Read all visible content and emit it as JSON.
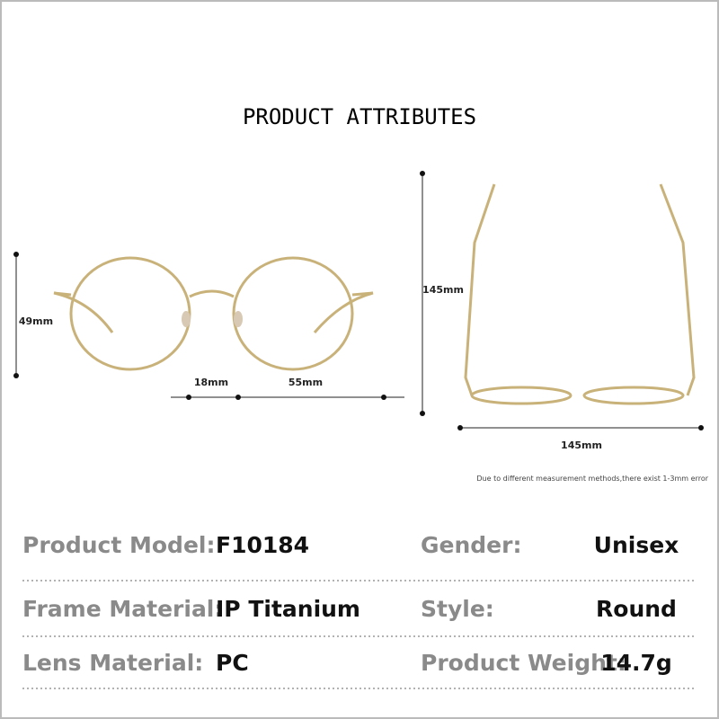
{
  "header": {
    "title": "PRODUCT ATTRIBUTES"
  },
  "dimensions": {
    "lens_height": "49mm",
    "bridge": "18mm",
    "lens_width": "55mm",
    "temple_length": "145mm",
    "frame_width": "145mm"
  },
  "note": "Due to different measurement methods,there exist 1-3mm error",
  "attributes": {
    "rows": [
      [
        "Product Model:",
        "F10184",
        "Gender:",
        "Unisex"
      ],
      [
        "Frame Material:",
        "IP Titanium",
        "Style:",
        "Round"
      ],
      [
        "Lens Material:",
        "PC",
        "Product Weight:",
        "14.7g"
      ]
    ]
  }
}
